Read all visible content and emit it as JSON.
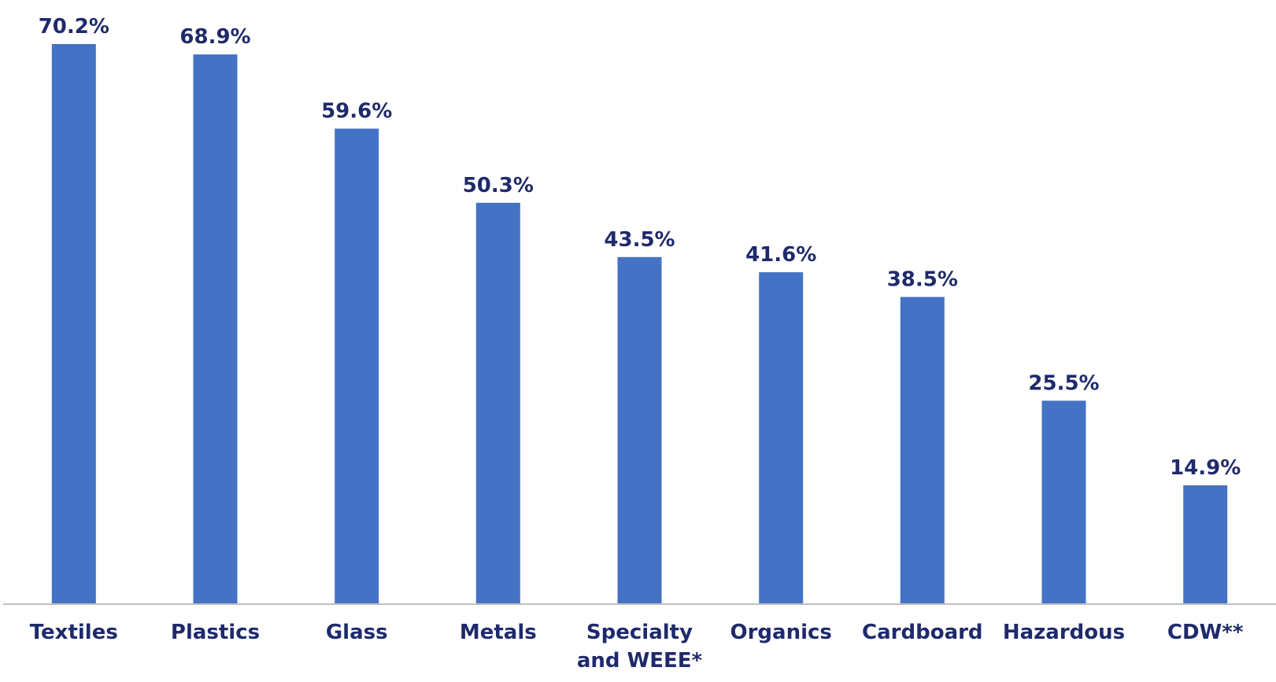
{
  "chart_data": {
    "type": "bar",
    "categories": [
      [
        "Textiles"
      ],
      [
        "Plastics"
      ],
      [
        "Glass"
      ],
      [
        "Metals"
      ],
      [
        "Specialty",
        "and WEEE*"
      ],
      [
        "Organics"
      ],
      [
        "Cardboard"
      ],
      [
        "Hazardous"
      ],
      [
        "CDW**"
      ]
    ],
    "values": [
      70.2,
      68.9,
      59.6,
      50.3,
      43.5,
      41.6,
      38.5,
      25.5,
      14.9
    ],
    "value_labels": [
      "70.2%",
      "68.9%",
      "59.6%",
      "50.3%",
      "43.5%",
      "41.6%",
      "38.5%",
      "25.5%",
      "14.9%"
    ],
    "ylim": [
      0,
      70.2
    ],
    "grid": false,
    "legend": "none",
    "bar_color": "#4472C4",
    "label_color": "#1F2A6B",
    "axis_color": "#BFBFBF"
  }
}
